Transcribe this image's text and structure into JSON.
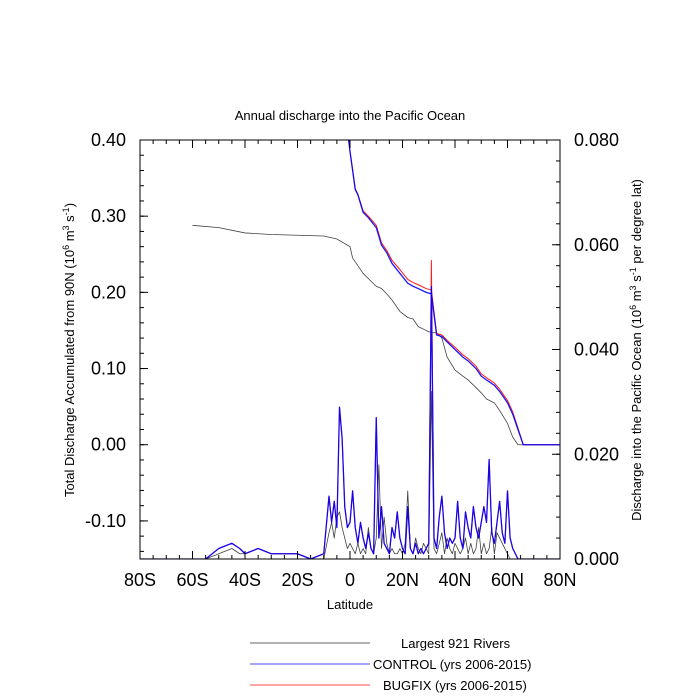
{
  "chart_data": {
    "type": "line",
    "title": "Annual discharge into the Pacific Ocean",
    "xlabel": "Latitude",
    "ylabel_left": "Total Discharge Accumulated from 90N (10",
    "ylabel_left_sup1": "6",
    "ylabel_left_mid": " m",
    "ylabel_left_sup2": "3",
    "ylabel_left_mid2": " s",
    "ylabel_left_sup3": "-1",
    "ylabel_left_end": ")",
    "ylabel_right": "Discharge into the Pacific Ocean (10",
    "ylabel_right_sup1": "6",
    "ylabel_right_mid": " m",
    "ylabel_right_sup2": "3",
    "ylabel_right_mid2": " s",
    "ylabel_right_sup3": "-1",
    "ylabel_right_end": " per degree lat)",
    "xlim": [
      -80,
      80
    ],
    "ylim_left": [
      -0.15,
      0.4
    ],
    "ylim_right": [
      0.0,
      0.08
    ],
    "x_ticks": [
      {
        "value": -80,
        "label": "80S"
      },
      {
        "value": -60,
        "label": "60S"
      },
      {
        "value": -40,
        "label": "40S"
      },
      {
        "value": -20,
        "label": "20S"
      },
      {
        "value": 0,
        "label": "0"
      },
      {
        "value": 20,
        "label": "20N"
      },
      {
        "value": 40,
        "label": "40N"
      },
      {
        "value": 60,
        "label": "60N"
      },
      {
        "value": 80,
        "label": "80N"
      }
    ],
    "y_left_ticks": [
      {
        "value": 0.4,
        "label": "0.40"
      },
      {
        "value": 0.3,
        "label": "0.30"
      },
      {
        "value": 0.2,
        "label": "0.20"
      },
      {
        "value": 0.1,
        "label": "0.10"
      },
      {
        "value": 0.0,
        "label": "0.00"
      },
      {
        "value": -0.1,
        "label": "-0.10"
      }
    ],
    "y_right_ticks": [
      {
        "value": 0.08,
        "label": "0.080"
      },
      {
        "value": 0.06,
        "label": "0.060"
      },
      {
        "value": 0.04,
        "label": "0.040"
      },
      {
        "value": 0.02,
        "label": "0.020"
      },
      {
        "value": 0.0,
        "label": "0.000"
      }
    ],
    "colors": {
      "rivers": "#000000",
      "control": "#0000ff",
      "bugfix": "#ff0000"
    },
    "series": [
      {
        "name": "Largest 921 Rivers",
        "axis": "left",
        "x": [
          -60,
          -50,
          -40,
          -30,
          -20,
          -10,
          -5,
          0,
          1,
          3,
          5,
          7,
          10,
          12,
          14,
          16,
          19,
          22,
          24,
          26,
          29,
          31,
          33,
          35,
          37,
          40,
          43,
          45,
          48,
          50,
          52,
          55,
          57,
          60,
          62,
          64,
          66,
          70,
          80
        ],
        "y": [
          0.288,
          0.285,
          0.278,
          0.276,
          0.275,
          0.274,
          0.27,
          0.26,
          0.245,
          0.235,
          0.225,
          0.218,
          0.208,
          0.205,
          0.198,
          0.19,
          0.175,
          0.167,
          0.165,
          0.155,
          0.15,
          0.147,
          0.147,
          0.14,
          0.115,
          0.098,
          0.09,
          0.085,
          0.075,
          0.068,
          0.06,
          0.055,
          0.045,
          0.028,
          0.01,
          0.0,
          0.0,
          0.0,
          0.0
        ]
      },
      {
        "name": "CONTROL (yrs 2006-2015)",
        "axis": "left",
        "x": [
          -0.5,
          0,
          1,
          2,
          3,
          5,
          7,
          10,
          12,
          14,
          16,
          19,
          22,
          24,
          26,
          29,
          31,
          33,
          35,
          37,
          40,
          43,
          45,
          48,
          50,
          52,
          55,
          57,
          60,
          62,
          64,
          66,
          70,
          80
        ],
        "y": [
          0.4,
          0.385,
          0.36,
          0.335,
          0.328,
          0.305,
          0.298,
          0.285,
          0.262,
          0.252,
          0.238,
          0.225,
          0.212,
          0.208,
          0.205,
          0.2,
          0.198,
          0.144,
          0.142,
          0.135,
          0.125,
          0.115,
          0.11,
          0.1,
          0.09,
          0.085,
          0.078,
          0.07,
          0.055,
          0.04,
          0.02,
          0.0,
          0.0,
          0.0
        ]
      },
      {
        "name": "BUGFIX (yrs 2006-2015)",
        "axis": "left",
        "x": [
          -0.5,
          0,
          1,
          2,
          3,
          5,
          7,
          10,
          12,
          14,
          16,
          19,
          22,
          24,
          26,
          29,
          31,
          33,
          35,
          37,
          40,
          43,
          45,
          48,
          50,
          52,
          55,
          57,
          60,
          62,
          64,
          66,
          70,
          80
        ],
        "y": [
          0.4,
          0.385,
          0.361,
          0.336,
          0.329,
          0.307,
          0.3,
          0.288,
          0.265,
          0.255,
          0.242,
          0.23,
          0.217,
          0.213,
          0.21,
          0.205,
          0.203,
          0.146,
          0.144,
          0.137,
          0.128,
          0.118,
          0.113,
          0.103,
          0.093,
          0.088,
          0.081,
          0.073,
          0.058,
          0.043,
          0.022,
          0.0,
          0.0,
          0.0
        ]
      },
      {
        "name": "Largest 921 Rivers",
        "axis": "right",
        "x": [
          -80,
          -70,
          -55,
          -50,
          -45,
          -42,
          -40,
          -35,
          -30,
          -25,
          -20,
          -15,
          -10,
          -8,
          -7,
          -6,
          -5,
          -4,
          -3,
          -2,
          -1,
          0,
          1,
          2,
          3,
          4,
          5,
          6,
          7,
          8,
          9,
          10,
          11,
          12,
          13,
          14,
          15,
          16,
          17,
          18,
          19,
          20,
          21,
          22,
          23,
          24,
          25,
          26,
          27,
          28,
          29,
          30,
          31,
          32,
          33,
          34,
          35,
          36,
          37,
          38,
          39,
          40,
          41,
          42,
          43,
          44,
          45,
          46,
          47,
          48,
          49,
          50,
          51,
          52,
          53,
          54,
          55,
          56,
          57,
          58,
          59,
          60,
          61,
          62,
          63,
          64,
          66,
          70,
          80
        ],
        "y": [
          0.0,
          0.0,
          0.0,
          0.001,
          0.002,
          0.001,
          0.001,
          0.002,
          0.001,
          0.001,
          0.001,
          0.0,
          0.0,
          0.005,
          0.007,
          0.004,
          0.008,
          0.009,
          0.006,
          0.004,
          0.002,
          0.003,
          0.002,
          0.001,
          0.003,
          0.001,
          0.002,
          0.001,
          0.006,
          0.002,
          0.001,
          0.004,
          0.018,
          0.002,
          0.008,
          0.003,
          0.001,
          0.002,
          0.001,
          0.001,
          0.002,
          0.001,
          0.003,
          0.013,
          0.002,
          0.001,
          0.004,
          0.002,
          0.001,
          0.003,
          0.002,
          0.001,
          0.032,
          0.002,
          0.001,
          0.003,
          0.005,
          0.001,
          0.004,
          0.002,
          0.001,
          0.003,
          0.002,
          0.001,
          0.002,
          0.004,
          0.001,
          0.003,
          0.001,
          0.002,
          0.006,
          0.001,
          0.003,
          0.001,
          0.002,
          0.006,
          0.001,
          0.005,
          0.004,
          0.003,
          0.002,
          0.001,
          0.0,
          0.0,
          0.0,
          0.0,
          0.0,
          0.0,
          0.0
        ]
      },
      {
        "name": "CONTROL (yrs 2006-2015)",
        "axis": "right",
        "x": [
          -80,
          -70,
          -55,
          -50,
          -45,
          -42,
          -40,
          -35,
          -30,
          -25,
          -20,
          -15,
          -10,
          -8,
          -7,
          -6,
          -5,
          -4,
          -3,
          -2,
          -1,
          0,
          1,
          2,
          3,
          4,
          5,
          6,
          7,
          8,
          9,
          10,
          11,
          12,
          13,
          14,
          15,
          16,
          17,
          18,
          19,
          20,
          21,
          22,
          23,
          24,
          25,
          26,
          27,
          28,
          29,
          30,
          31,
          32,
          33,
          34,
          35,
          36,
          37,
          38,
          39,
          40,
          41,
          42,
          43,
          44,
          45,
          46,
          47,
          48,
          49,
          50,
          51,
          52,
          53,
          54,
          55,
          56,
          57,
          58,
          59,
          60,
          61,
          62,
          63,
          64,
          66,
          70,
          80
        ],
        "y": [
          0.0,
          0.0,
          0.0,
          0.002,
          0.003,
          0.002,
          0.001,
          0.002,
          0.001,
          0.001,
          0.001,
          0.0,
          0.001,
          0.012,
          0.007,
          0.011,
          0.006,
          0.029,
          0.023,
          0.01,
          0.006,
          0.007,
          0.013,
          0.006,
          0.003,
          0.007,
          0.004,
          0.002,
          0.005,
          0.002,
          0.001,
          0.027,
          0.004,
          0.01,
          0.003,
          0.002,
          0.001,
          0.006,
          0.004,
          0.009,
          0.004,
          0.002,
          0.001,
          0.01,
          0.002,
          0.001,
          0.003,
          0.001,
          0.002,
          0.001,
          0.002,
          0.003,
          0.052,
          0.004,
          0.002,
          0.008,
          0.012,
          0.005,
          0.002,
          0.004,
          0.003,
          0.004,
          0.011,
          0.004,
          0.002,
          0.009,
          0.006,
          0.004,
          0.01,
          0.006,
          0.004,
          0.007,
          0.01,
          0.007,
          0.019,
          0.005,
          0.003,
          0.007,
          0.011,
          0.005,
          0.003,
          0.013,
          0.004,
          0.002,
          0.001,
          0.0,
          0.0,
          0.0,
          0.0
        ]
      },
      {
        "name": "BUGFIX (yrs 2006-2015)",
        "axis": "right",
        "x": [
          -80,
          -70,
          -55,
          -50,
          -45,
          -42,
          -40,
          -35,
          -30,
          -25,
          -20,
          -15,
          -10,
          -8,
          -7,
          -6,
          -5,
          -4,
          -3,
          -2,
          -1,
          0,
          1,
          2,
          3,
          4,
          5,
          6,
          7,
          8,
          9,
          10,
          11,
          12,
          13,
          14,
          15,
          16,
          17,
          18,
          19,
          20,
          21,
          22,
          23,
          24,
          25,
          26,
          27,
          28,
          29,
          30,
          31,
          32,
          33,
          34,
          35,
          36,
          37,
          38,
          39,
          40,
          41,
          42,
          43,
          44,
          45,
          46,
          47,
          48,
          49,
          50,
          51,
          52,
          53,
          54,
          55,
          56,
          57,
          58,
          59,
          60,
          61,
          62,
          63,
          64,
          66,
          70,
          80
        ],
        "y": [
          0.0,
          0.0,
          0.0,
          0.002,
          0.003,
          0.002,
          0.001,
          0.002,
          0.001,
          0.001,
          0.001,
          0.0,
          0.001,
          0.012,
          0.007,
          0.011,
          0.006,
          0.029,
          0.023,
          0.01,
          0.006,
          0.007,
          0.013,
          0.006,
          0.003,
          0.007,
          0.004,
          0.002,
          0.005,
          0.002,
          0.001,
          0.027,
          0.004,
          0.01,
          0.003,
          0.002,
          0.001,
          0.006,
          0.004,
          0.009,
          0.004,
          0.002,
          0.001,
          0.01,
          0.002,
          0.001,
          0.003,
          0.001,
          0.002,
          0.001,
          0.002,
          0.003,
          0.057,
          0.004,
          0.002,
          0.008,
          0.012,
          0.005,
          0.002,
          0.004,
          0.003,
          0.004,
          0.011,
          0.004,
          0.002,
          0.009,
          0.006,
          0.004,
          0.01,
          0.006,
          0.004,
          0.007,
          0.01,
          0.007,
          0.019,
          0.005,
          0.003,
          0.007,
          0.011,
          0.005,
          0.003,
          0.013,
          0.004,
          0.002,
          0.001,
          0.0,
          0.0,
          0.0,
          0.0
        ]
      }
    ],
    "legend": [
      {
        "label": "Largest 921 Rivers",
        "color": "#000000"
      },
      {
        "label": "CONTROL (yrs 2006-2015)",
        "color": "#0000ff"
      },
      {
        "label": "BUGFIX (yrs 2006-2015)",
        "color": "#ff0000"
      }
    ]
  }
}
